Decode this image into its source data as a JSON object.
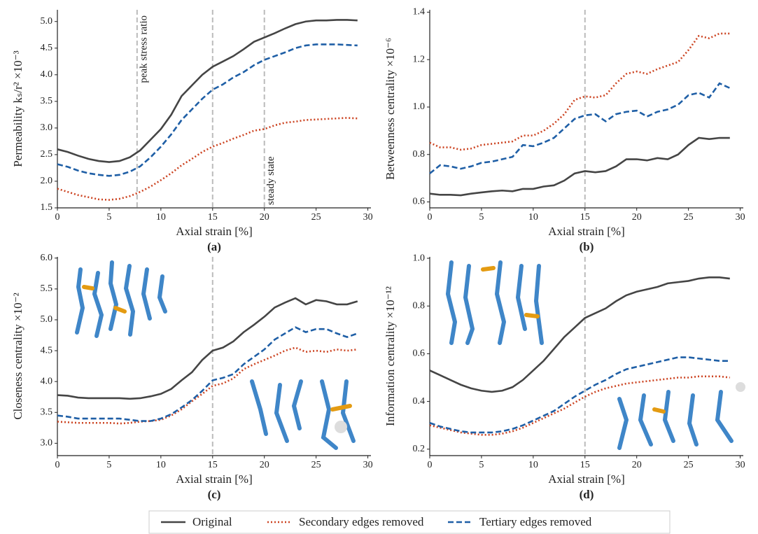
{
  "chart_data": [
    {
      "type": "line",
      "panel_label": "(a)",
      "xlabel": "Axial strain [%]",
      "ylabel": "Permeability kₛ/r² ×10⁻³",
      "x": [
        0,
        1,
        2,
        3,
        4,
        5,
        6,
        7,
        8,
        9,
        10,
        11,
        12,
        13,
        14,
        15,
        16,
        17,
        18,
        19,
        20,
        21,
        22,
        23,
        24,
        25,
        26,
        27,
        28,
        29
      ],
      "series": [
        {
          "name": "Original",
          "color": "#454545",
          "dash": "solid",
          "values": [
            2.6,
            2.55,
            2.48,
            2.42,
            2.38,
            2.36,
            2.38,
            2.45,
            2.58,
            2.78,
            2.98,
            3.25,
            3.6,
            3.8,
            4.0,
            4.15,
            4.25,
            4.35,
            4.48,
            4.62,
            4.7,
            4.78,
            4.87,
            4.95,
            5.0,
            5.02,
            5.02,
            5.03,
            5.03,
            5.02
          ]
        },
        {
          "name": "Secondary edges removed",
          "color": "#cc4422",
          "dash": "dotted",
          "values": [
            1.86,
            1.8,
            1.74,
            1.7,
            1.66,
            1.65,
            1.67,
            1.72,
            1.8,
            1.9,
            2.02,
            2.15,
            2.3,
            2.42,
            2.55,
            2.65,
            2.72,
            2.8,
            2.87,
            2.95,
            2.98,
            3.05,
            3.1,
            3.12,
            3.15,
            3.16,
            3.17,
            3.18,
            3.19,
            3.18
          ]
        },
        {
          "name": "Tertiary edges removed",
          "color": "#1f5fa6",
          "dash": "dashed",
          "values": [
            2.32,
            2.27,
            2.2,
            2.15,
            2.12,
            2.1,
            2.12,
            2.18,
            2.28,
            2.45,
            2.65,
            2.88,
            3.15,
            3.35,
            3.55,
            3.72,
            3.82,
            3.95,
            4.05,
            4.18,
            4.28,
            4.35,
            4.42,
            4.5,
            4.55,
            4.57,
            4.57,
            4.57,
            4.56,
            4.55
          ]
        }
      ],
      "xlim": [
        0,
        30.3
      ],
      "xticks": [
        0,
        5,
        10,
        15,
        20,
        25,
        30
      ],
      "ylim": [
        1.5,
        5.22
      ],
      "yticks": [
        1.5,
        {
          "value": 2,
          "label": "2.0"
        },
        2.5,
        {
          "value": 3,
          "label": "3.0"
        },
        3.5,
        {
          "value": 4,
          "label": "4.0"
        },
        4.5,
        {
          "value": 5,
          "label": "5.0"
        }
      ],
      "vlines": [
        7.7,
        15,
        20
      ],
      "annotations": [
        {
          "text": "peak stress ratio",
          "x": 7.7,
          "position": "top"
        },
        {
          "text": "steady state",
          "x": 20,
          "position": "bottom"
        }
      ]
    },
    {
      "type": "line",
      "panel_label": "(b)",
      "xlabel": "Axial strain [%]",
      "ylabel": "Betweenness centrality ×10⁻⁶",
      "x": [
        0,
        1,
        2,
        3,
        4,
        5,
        6,
        7,
        8,
        9,
        10,
        11,
        12,
        13,
        14,
        15,
        16,
        17,
        18,
        19,
        20,
        21,
        22,
        23,
        24,
        25,
        26,
        27,
        28,
        29
      ],
      "series": [
        {
          "name": "Original",
          "color": "#454545",
          "dash": "solid",
          "values": [
            0.635,
            0.63,
            0.63,
            0.628,
            0.635,
            0.64,
            0.645,
            0.648,
            0.645,
            0.655,
            0.655,
            0.665,
            0.67,
            0.69,
            0.72,
            0.73,
            0.725,
            0.73,
            0.75,
            0.78,
            0.78,
            0.775,
            0.785,
            0.78,
            0.8,
            0.84,
            0.87,
            0.865,
            0.87,
            0.87
          ]
        },
        {
          "name": "Secondary edges removed",
          "color": "#cc4422",
          "dash": "dotted",
          "values": [
            0.85,
            0.83,
            0.83,
            0.82,
            0.825,
            0.84,
            0.845,
            0.85,
            0.855,
            0.88,
            0.88,
            0.9,
            0.93,
            0.97,
            1.03,
            1.045,
            1.04,
            1.05,
            1.1,
            1.14,
            1.15,
            1.14,
            1.16,
            1.175,
            1.19,
            1.24,
            1.3,
            1.29,
            1.31,
            1.31
          ]
        },
        {
          "name": "Tertiary edges removed",
          "color": "#1f5fa6",
          "dash": "dashed",
          "values": [
            0.72,
            0.755,
            0.75,
            0.74,
            0.75,
            0.765,
            0.77,
            0.78,
            0.79,
            0.84,
            0.835,
            0.85,
            0.87,
            0.91,
            0.95,
            0.965,
            0.97,
            0.94,
            0.97,
            0.98,
            0.985,
            0.96,
            0.98,
            0.99,
            1.01,
            1.05,
            1.06,
            1.04,
            1.1,
            1.08
          ]
        }
      ],
      "xlim": [
        0,
        30.3
      ],
      "xticks": [
        0,
        5,
        10,
        15,
        20,
        25,
        30
      ],
      "ylim": [
        0.575,
        1.41
      ],
      "yticks": [
        0.6,
        0.8,
        {
          "value": 1,
          "label": "1.0"
        },
        1.2,
        1.4
      ],
      "vlines": [
        15
      ]
    },
    {
      "type": "line",
      "panel_label": "(c)",
      "xlabel": "Axial strain [%]",
      "ylabel": "Closeness centrality ×10⁻²",
      "x": [
        0,
        1,
        2,
        3,
        4,
        5,
        6,
        7,
        8,
        9,
        10,
        11,
        12,
        13,
        14,
        15,
        16,
        17,
        18,
        19,
        20,
        21,
        22,
        23,
        24,
        25,
        26,
        27,
        28,
        29
      ],
      "series": [
        {
          "name": "Original",
          "color": "#454545",
          "dash": "solid",
          "values": [
            3.78,
            3.77,
            3.74,
            3.73,
            3.73,
            3.73,
            3.73,
            3.72,
            3.73,
            3.76,
            3.8,
            3.88,
            4.02,
            4.15,
            4.35,
            4.5,
            4.55,
            4.65,
            4.8,
            4.92,
            5.05,
            5.2,
            5.28,
            5.35,
            5.25,
            5.32,
            5.3,
            5.25,
            5.25,
            5.3
          ]
        },
        {
          "name": "Secondary edges removed",
          "color": "#cc4422",
          "dash": "dotted",
          "values": [
            3.35,
            3.34,
            3.33,
            3.33,
            3.33,
            3.33,
            3.32,
            3.33,
            3.35,
            3.36,
            3.38,
            3.45,
            3.55,
            3.68,
            3.8,
            3.93,
            3.97,
            4.05,
            4.2,
            4.28,
            4.35,
            4.42,
            4.5,
            4.55,
            4.48,
            4.5,
            4.48,
            4.52,
            4.5,
            4.52
          ]
        },
        {
          "name": "Tertiary edges removed",
          "color": "#1f5fa6",
          "dash": "dashed",
          "values": [
            3.45,
            3.43,
            3.4,
            3.4,
            3.4,
            3.4,
            3.4,
            3.38,
            3.36,
            3.36,
            3.4,
            3.47,
            3.58,
            3.7,
            3.85,
            4.02,
            4.06,
            4.12,
            4.28,
            4.4,
            4.52,
            4.68,
            4.78,
            4.88,
            4.8,
            4.85,
            4.85,
            4.78,
            4.72,
            4.78
          ]
        }
      ],
      "xlim": [
        0,
        30.3
      ],
      "xticks": [
        0,
        5,
        10,
        15,
        20,
        25,
        30
      ],
      "ylim": [
        2.8,
        6.02
      ],
      "yticks": [
        {
          "value": 3,
          "label": "3.0"
        },
        3.5,
        {
          "value": 4,
          "label": "4.0"
        },
        4.5,
        {
          "value": 5,
          "label": "5.0"
        },
        5.5,
        {
          "value": 6,
          "label": "6.0"
        }
      ],
      "vlines": [
        15
      ]
    },
    {
      "type": "line",
      "panel_label": "(d)",
      "xlabel": "Axial strain [%]",
      "ylabel": "Information centrality ×10⁻¹²",
      "x": [
        0,
        1,
        2,
        3,
        4,
        5,
        6,
        7,
        8,
        9,
        10,
        11,
        12,
        13,
        14,
        15,
        16,
        17,
        18,
        19,
        20,
        21,
        22,
        23,
        24,
        25,
        26,
        27,
        28,
        29
      ],
      "series": [
        {
          "name": "Original",
          "color": "#454545",
          "dash": "solid",
          "values": [
            0.53,
            0.51,
            0.49,
            0.47,
            0.455,
            0.445,
            0.44,
            0.445,
            0.46,
            0.49,
            0.53,
            0.57,
            0.62,
            0.67,
            0.71,
            0.75,
            0.77,
            0.79,
            0.82,
            0.845,
            0.86,
            0.87,
            0.88,
            0.895,
            0.9,
            0.905,
            0.915,
            0.92,
            0.92,
            0.915
          ]
        },
        {
          "name": "Secondary edges removed",
          "color": "#cc4422",
          "dash": "dotted",
          "values": [
            0.3,
            0.29,
            0.28,
            0.27,
            0.265,
            0.26,
            0.26,
            0.265,
            0.275,
            0.29,
            0.31,
            0.33,
            0.35,
            0.37,
            0.395,
            0.42,
            0.44,
            0.455,
            0.465,
            0.475,
            0.48,
            0.485,
            0.49,
            0.495,
            0.5,
            0.5,
            0.505,
            0.505,
            0.505,
            0.5
          ]
        },
        {
          "name": "Tertiary edges removed",
          "color": "#1f5fa6",
          "dash": "dashed",
          "values": [
            0.31,
            0.295,
            0.285,
            0.275,
            0.27,
            0.27,
            0.27,
            0.275,
            0.285,
            0.3,
            0.32,
            0.34,
            0.36,
            0.39,
            0.42,
            0.445,
            0.47,
            0.49,
            0.515,
            0.535,
            0.545,
            0.555,
            0.565,
            0.575,
            0.585,
            0.585,
            0.58,
            0.575,
            0.57,
            0.57
          ]
        }
      ],
      "xlim": [
        0,
        30.3
      ],
      "xticks": [
        0,
        5,
        10,
        15,
        20,
        25,
        30
      ],
      "ylim": [
        0.173,
        1.006
      ],
      "yticks": [
        0.2,
        0.4,
        0.6,
        0.8,
        {
          "value": 1,
          "label": "1.0"
        }
      ],
      "vlines": [
        15
      ]
    }
  ]
}
